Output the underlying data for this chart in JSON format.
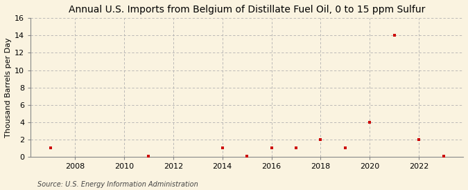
{
  "title": "Annual U.S. Imports from Belgium of Distillate Fuel Oil, 0 to 15 ppm Sulfur",
  "ylabel": "Thousand Barrels per Day",
  "source": "Source: U.S. Energy Information Administration",
  "background_color": "#faf3e0",
  "data_color": "#cc0000",
  "years": [
    2007,
    2011,
    2014,
    2015,
    2016,
    2017,
    2018,
    2019,
    2020,
    2021,
    2022,
    2023
  ],
  "values": [
    1,
    0.05,
    1,
    0.05,
    1,
    1,
    2,
    1,
    4,
    14,
    2,
    0.05
  ],
  "xlim": [
    2006.2,
    2023.8
  ],
  "ylim": [
    0,
    16
  ],
  "yticks": [
    0,
    2,
    4,
    6,
    8,
    10,
    12,
    14,
    16
  ],
  "xticks": [
    2008,
    2010,
    2012,
    2014,
    2016,
    2018,
    2020,
    2022
  ],
  "grid_color": "#b0b0b0",
  "title_fontsize": 10,
  "label_fontsize": 8,
  "tick_fontsize": 8,
  "source_fontsize": 7
}
